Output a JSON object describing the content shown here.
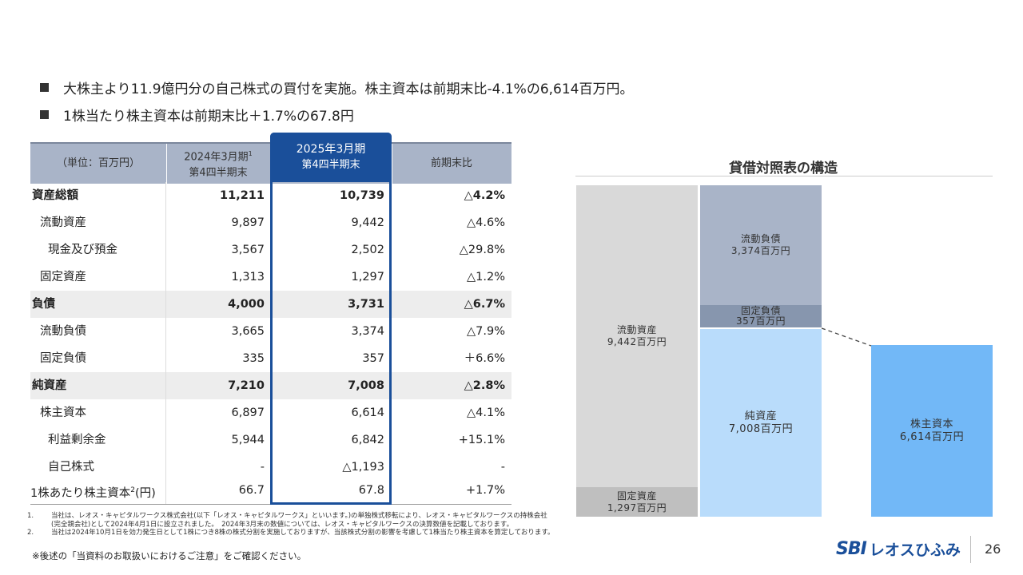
{
  "bullets": [
    "大株主より11.9億円分の自己株式の買付を実施。株主資本は前期末比-4.1%の6,614百万円。",
    "1株当たり株主資本は前期末比＋1.7%の67.8円"
  ],
  "table": {
    "unit_label": "（単位：百万円）",
    "col1_line1": "2024年3月期",
    "col1_sup": "1",
    "col1_line2": "第4四半期末",
    "col2_line1": "2025年3月期",
    "col2_line2": "第4四半期末",
    "col3": "前期末比",
    "rows": [
      {
        "label": "資産総額",
        "v1": "11,211",
        "v2": "10,739",
        "v3": "△4.2%"
      },
      {
        "label": "流動資産",
        "v1": "9,897",
        "v2": "9,442",
        "v3": "△4.6%"
      },
      {
        "label": "現金及び預金",
        "v1": "3,567",
        "v2": "2,502",
        "v3": "△29.8%"
      },
      {
        "label": "固定資産",
        "v1": "1,313",
        "v2": "1,297",
        "v3": "△1.2%"
      },
      {
        "label": "負債",
        "v1": "4,000",
        "v2": "3,731",
        "v3": "△6.7%"
      },
      {
        "label": "流動負債",
        "v1": "3,665",
        "v2": "3,374",
        "v3": "△7.9%"
      },
      {
        "label": "固定負債",
        "v1": "335",
        "v2": "357",
        "v3": "＋6.6%"
      },
      {
        "label": "純資産",
        "v1": "7,210",
        "v2": "7,008",
        "v3": "△2.8%"
      },
      {
        "label": "株主資本",
        "v1": "6,897",
        "v2": "6,614",
        "v3": "△4.1%"
      },
      {
        "label": "利益剰余金",
        "v1": "5,944",
        "v2": "6,842",
        "v3": "+15.1%"
      },
      {
        "label": "自己株式",
        "v1": "-",
        "v2": "△1,193",
        "v3": "-"
      },
      {
        "label": "1株あたり株主資本",
        "label_sup": "2",
        "label_suffix": "(円)",
        "v1": "66.7",
        "v2": "67.8",
        "v3": "+1.7%"
      }
    ]
  },
  "notes": [
    {
      "k": "1.",
      "t": "当社は、レオス・キャピタルワークス株式会社(以下「レオス・キャピタルワークス」といいます。)の単独株式移転により、レオス・キャピタルワークスの持株会社(完全親会社)として2024年4月1日に設立されました。　2024年3月末の数値については、レオス・キャピタルワークスの決算数値を記載しております。"
    },
    {
      "k": "2.",
      "t": "当社は2024年10月1日を効力発生日として1株につき8株の株式分割を実施しておりますが、当該株式分割の影響を考慮して1株当たり株主資本を算定しております。"
    }
  ],
  "caution": "※後述の「当資料のお取扱いにおけるご注意」をご確認ください。",
  "chart": {
    "title": "貸借対照表の構造",
    "blocks": {
      "current_assets": {
        "name": "流動資産",
        "value": "9,442百万円"
      },
      "fixed_assets": {
        "name": "固定資産",
        "value": "1,297百万円"
      },
      "current_liabilities": {
        "name": "流動負債",
        "value": "3,374百万円"
      },
      "fixed_liabilities": {
        "name": "固定負債",
        "value": "357百万円"
      },
      "net_assets": {
        "name": "純資産",
        "value": "7,008百万円"
      },
      "shareholders_equity": {
        "name": "株主資本",
        "value": "6,614百万円"
      }
    },
    "colors": {
      "current_assets": "#d9d9d9",
      "fixed_assets": "#bfbfbf",
      "current_liabilities": "#a9b4c8",
      "fixed_liabilities": "#8796ae",
      "net_assets": "#b9dcfb",
      "shareholders_equity": "#72b8f7"
    }
  },
  "footer": {
    "logo_sbi": "SBI",
    "logo_name": "レオスひふみ",
    "page_number": "26"
  }
}
